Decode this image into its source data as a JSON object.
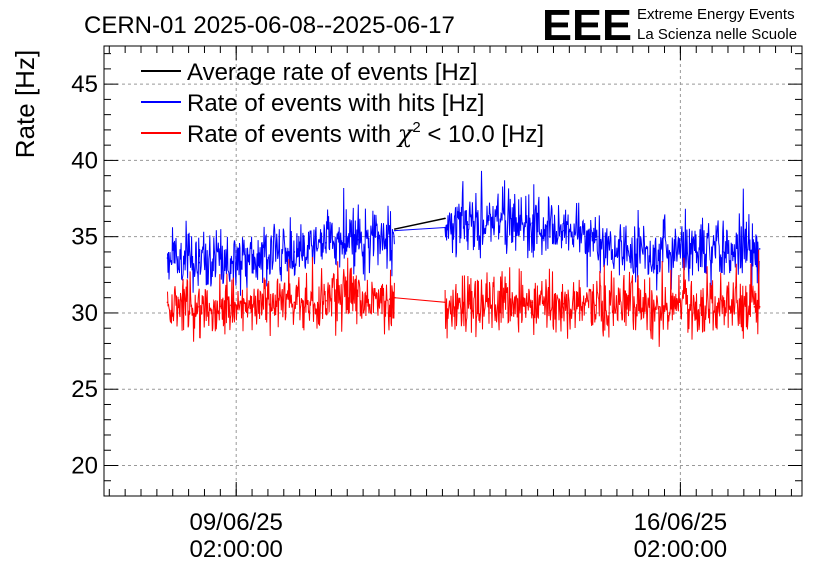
{
  "chart_data": {
    "type": "line",
    "title": "CERN-01 2025-06-08--2025-06-17",
    "ylabel": "Rate [Hz]",
    "xlabel": "",
    "ylim": [
      18,
      47.5
    ],
    "y_ticks": [
      20,
      25,
      30,
      35,
      40,
      45
    ],
    "x_domain": [
      "2025-06-07 00:00:00",
      "2025-06-18 00:00:00"
    ],
    "x_ticks": [
      {
        "date": "2025-06-09 02:00:00",
        "line1": "09/06/25",
        "line2": "02:00:00"
      },
      {
        "date": "2025-06-16 02:00:00",
        "line1": "16/06/25",
        "line2": "02:00:00"
      }
    ],
    "grid": true,
    "legend_position": "top-left",
    "series": [
      {
        "name": "Average rate of events [Hz]",
        "color": "#000000",
        "x": [
          "2025-06-11 14:00",
          "2025-06-12 09:00"
        ],
        "values": [
          35.5,
          36.2
        ]
      },
      {
        "name": "Rate of events with hits [Hz]",
        "color": "#0000ff",
        "noise": 1.0,
        "x": [
          "2025-06-08 00:00",
          "2025-06-08 12:00",
          "2025-06-09 00:00",
          "2025-06-09 12:00",
          "2025-06-10 00:00",
          "2025-06-10 12:00",
          "2025-06-11 00:00",
          "2025-06-11 12:00",
          "2025-06-11 14:00",
          "2025-06-12 09:00",
          "2025-06-12 18:00",
          "2025-06-13 06:00",
          "2025-06-13 18:00",
          "2025-06-14 06:00",
          "2025-06-14 18:00",
          "2025-06-15 06:00",
          "2025-06-15 18:00",
          "2025-06-16 06:00",
          "2025-06-16 18:00",
          "2025-06-17 06:00",
          "2025-06-17 08:00"
        ],
        "values": [
          33.6,
          33.3,
          33.5,
          33.9,
          34.0,
          34.6,
          34.8,
          35.0,
          35.4,
          35.6,
          35.8,
          36.1,
          35.9,
          35.4,
          34.8,
          34.2,
          33.9,
          34.0,
          34.0,
          34.2,
          34.2
        ]
      },
      {
        "name": "Rate of events with χ² < 10.0 [Hz]",
        "label_main": "Rate of events with ",
        "label_sym": "χ",
        "label_sup": "2",
        "label_tail": " < 10.0 [Hz]",
        "color": "#ff0000",
        "noise": 1.0,
        "x": [
          "2025-06-08 00:00",
          "2025-06-08 12:00",
          "2025-06-09 00:00",
          "2025-06-09 12:00",
          "2025-06-10 00:00",
          "2025-06-10 12:00",
          "2025-06-11 00:00",
          "2025-06-11 12:00",
          "2025-06-11 14:00",
          "2025-06-12 09:00",
          "2025-06-12 18:00",
          "2025-06-13 06:00",
          "2025-06-13 18:00",
          "2025-06-14 06:00",
          "2025-06-14 18:00",
          "2025-06-15 06:00",
          "2025-06-15 18:00",
          "2025-06-16 06:00",
          "2025-06-16 18:00",
          "2025-06-17 06:00",
          "2025-06-17 08:00"
        ],
        "values": [
          30.7,
          30.4,
          30.5,
          30.6,
          30.7,
          30.8,
          31.1,
          30.9,
          31.0,
          30.7,
          30.6,
          30.8,
          30.7,
          30.6,
          30.5,
          30.6,
          30.4,
          30.5,
          30.4,
          30.4,
          30.4
        ]
      }
    ]
  },
  "logo": {
    "mark": "EEE",
    "line1": "Extreme Energy Events",
    "line2": "La Scienza nelle Scuole",
    "color": "#0000ff"
  }
}
